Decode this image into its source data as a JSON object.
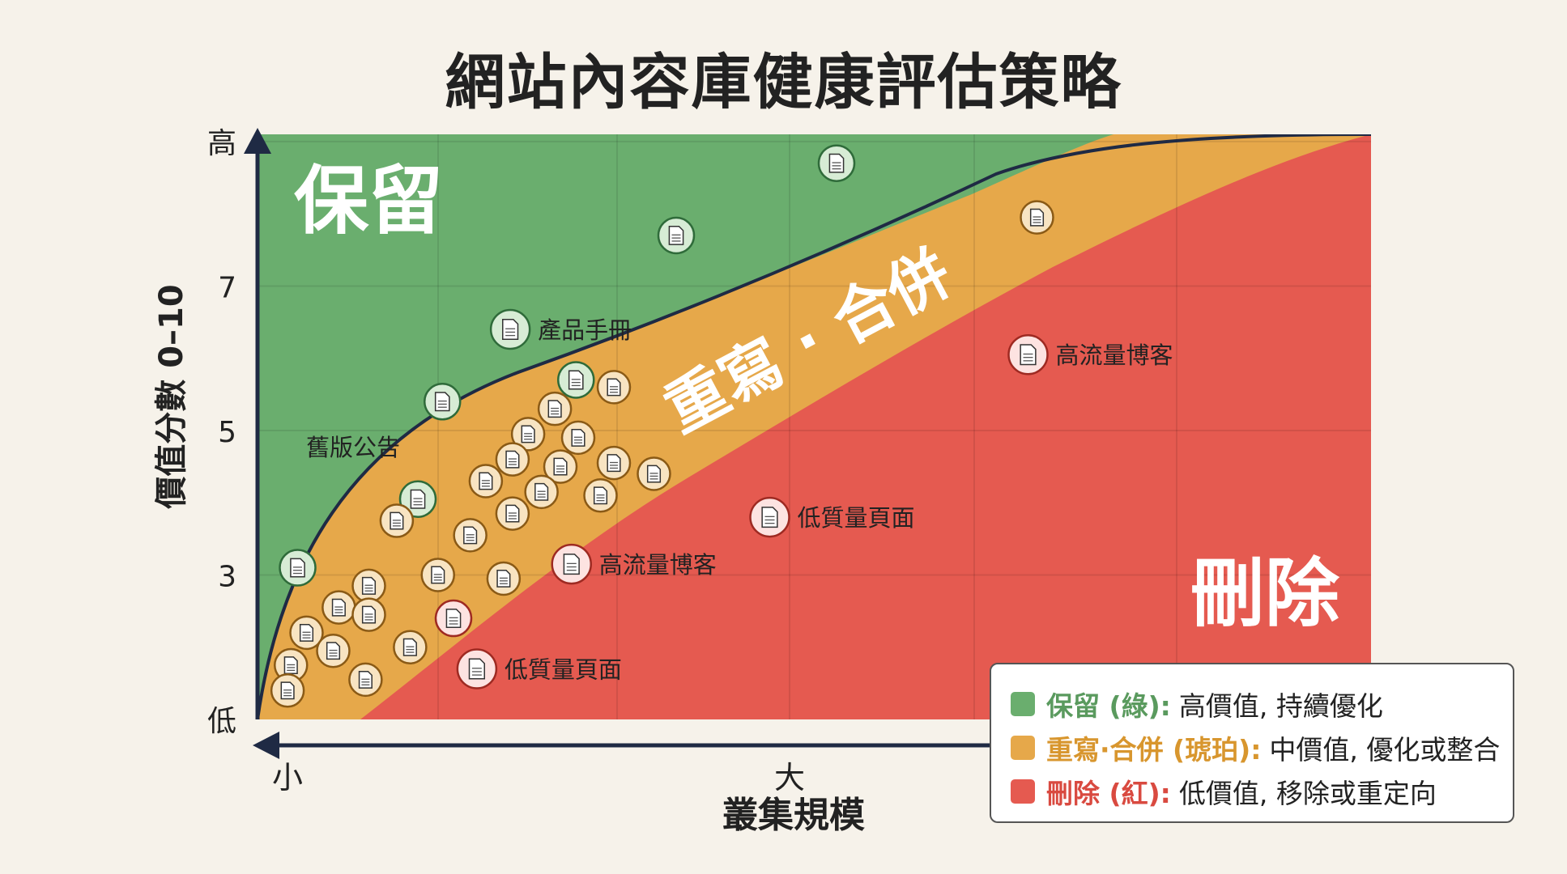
{
  "title": "網站內容庫健康評估策略",
  "chart_data": {
    "type": "scatter",
    "title": "網站內容庫健康評估策略",
    "xlabel": "叢集規模",
    "ylabel": "價值分數 0–10",
    "x_tick_labels": [
      "小",
      "大"
    ],
    "y_tick_labels": [
      "低",
      "3",
      "5",
      "7",
      "高"
    ],
    "y_tick_values": [
      1,
      3,
      5,
      7,
      9
    ],
    "ylim": [
      1,
      9.1
    ],
    "xlim": [
      0,
      10
    ],
    "grid": true,
    "colors": {
      "keep": "#6aae6e",
      "rewrite": "#e6a84a",
      "delete": "#e55a50",
      "axis": "#1f2a44"
    },
    "zones": [
      {
        "id": "keep",
        "label": "保留",
        "color": "#6aae6e"
      },
      {
        "id": "rewrite",
        "label": "重寫 · 合併",
        "color": "#e6a84a"
      },
      {
        "id": "delete",
        "label": "刪除",
        "color": "#e55a50"
      }
    ],
    "points": [
      {
        "x": 5.2,
        "y": 8.7,
        "zone": "keep"
      },
      {
        "x": 3.76,
        "y": 7.7,
        "zone": "keep"
      },
      {
        "x": 2.27,
        "y": 6.4,
        "zone": "keep",
        "label": "產品手冊"
      },
      {
        "x": 1.66,
        "y": 5.4,
        "zone": "keep"
      },
      {
        "x": 2.86,
        "y": 5.7,
        "zone": "keep"
      },
      {
        "x": 1.44,
        "y": 4.05,
        "zone": "keep",
        "label_left": "舊版公告"
      },
      {
        "x": 0.36,
        "y": 3.1,
        "zone": "keep"
      },
      {
        "x": 7.0,
        "y": 7.95,
        "zone": "rewrite"
      },
      {
        "x": 3.2,
        "y": 5.6,
        "zone": "rewrite"
      },
      {
        "x": 2.67,
        "y": 5.3,
        "zone": "rewrite"
      },
      {
        "x": 2.43,
        "y": 4.95,
        "zone": "rewrite"
      },
      {
        "x": 2.88,
        "y": 4.9,
        "zone": "rewrite"
      },
      {
        "x": 2.29,
        "y": 4.6,
        "zone": "rewrite"
      },
      {
        "x": 2.72,
        "y": 4.5,
        "zone": "rewrite"
      },
      {
        "x": 3.2,
        "y": 4.55,
        "zone": "rewrite"
      },
      {
        "x": 3.56,
        "y": 4.4,
        "zone": "rewrite"
      },
      {
        "x": 2.05,
        "y": 4.3,
        "zone": "rewrite"
      },
      {
        "x": 2.55,
        "y": 4.15,
        "zone": "rewrite"
      },
      {
        "x": 3.08,
        "y": 4.1,
        "zone": "rewrite"
      },
      {
        "x": 2.29,
        "y": 3.85,
        "zone": "rewrite"
      },
      {
        "x": 1.25,
        "y": 3.75,
        "zone": "rewrite"
      },
      {
        "x": 1.91,
        "y": 3.55,
        "zone": "rewrite"
      },
      {
        "x": 1.62,
        "y": 3.0,
        "zone": "rewrite"
      },
      {
        "x": 2.21,
        "y": 2.95,
        "zone": "rewrite"
      },
      {
        "x": 1.0,
        "y": 2.85,
        "zone": "rewrite"
      },
      {
        "x": 0.73,
        "y": 2.55,
        "zone": "rewrite"
      },
      {
        "x": 1.0,
        "y": 2.45,
        "zone": "rewrite"
      },
      {
        "x": 0.44,
        "y": 2.2,
        "zone": "rewrite"
      },
      {
        "x": 1.37,
        "y": 2.0,
        "zone": "rewrite"
      },
      {
        "x": 0.68,
        "y": 1.95,
        "zone": "rewrite"
      },
      {
        "x": 0.3,
        "y": 1.75,
        "zone": "rewrite"
      },
      {
        "x": 0.97,
        "y": 1.55,
        "zone": "rewrite"
      },
      {
        "x": 0.27,
        "y": 1.4,
        "zone": "rewrite"
      },
      {
        "x": 6.92,
        "y": 6.05,
        "zone": "delete",
        "label": "高流量博客"
      },
      {
        "x": 4.6,
        "y": 3.8,
        "zone": "delete",
        "label": "低質量頁面"
      },
      {
        "x": 2.82,
        "y": 3.15,
        "zone": "delete",
        "label": "高流量博客"
      },
      {
        "x": 1.76,
        "y": 2.4,
        "zone": "delete"
      },
      {
        "x": 1.97,
        "y": 1.7,
        "zone": "delete",
        "label": "低質量頁面"
      }
    ]
  },
  "legend": {
    "items": [
      {
        "name": "保留 (綠):",
        "desc": "高價值, 持續優化",
        "color": "#6aae6e",
        "text_color": "#5a9a5e"
      },
      {
        "name": "重寫·合併 (琥珀):",
        "desc": "中價值, 優化或整合",
        "color": "#e6a84a",
        "text_color": "#d8962e"
      },
      {
        "name": "刪除 (紅):",
        "desc": "低價值, 移除或重定向",
        "color": "#e55a50",
        "text_color": "#d94a40"
      }
    ]
  }
}
